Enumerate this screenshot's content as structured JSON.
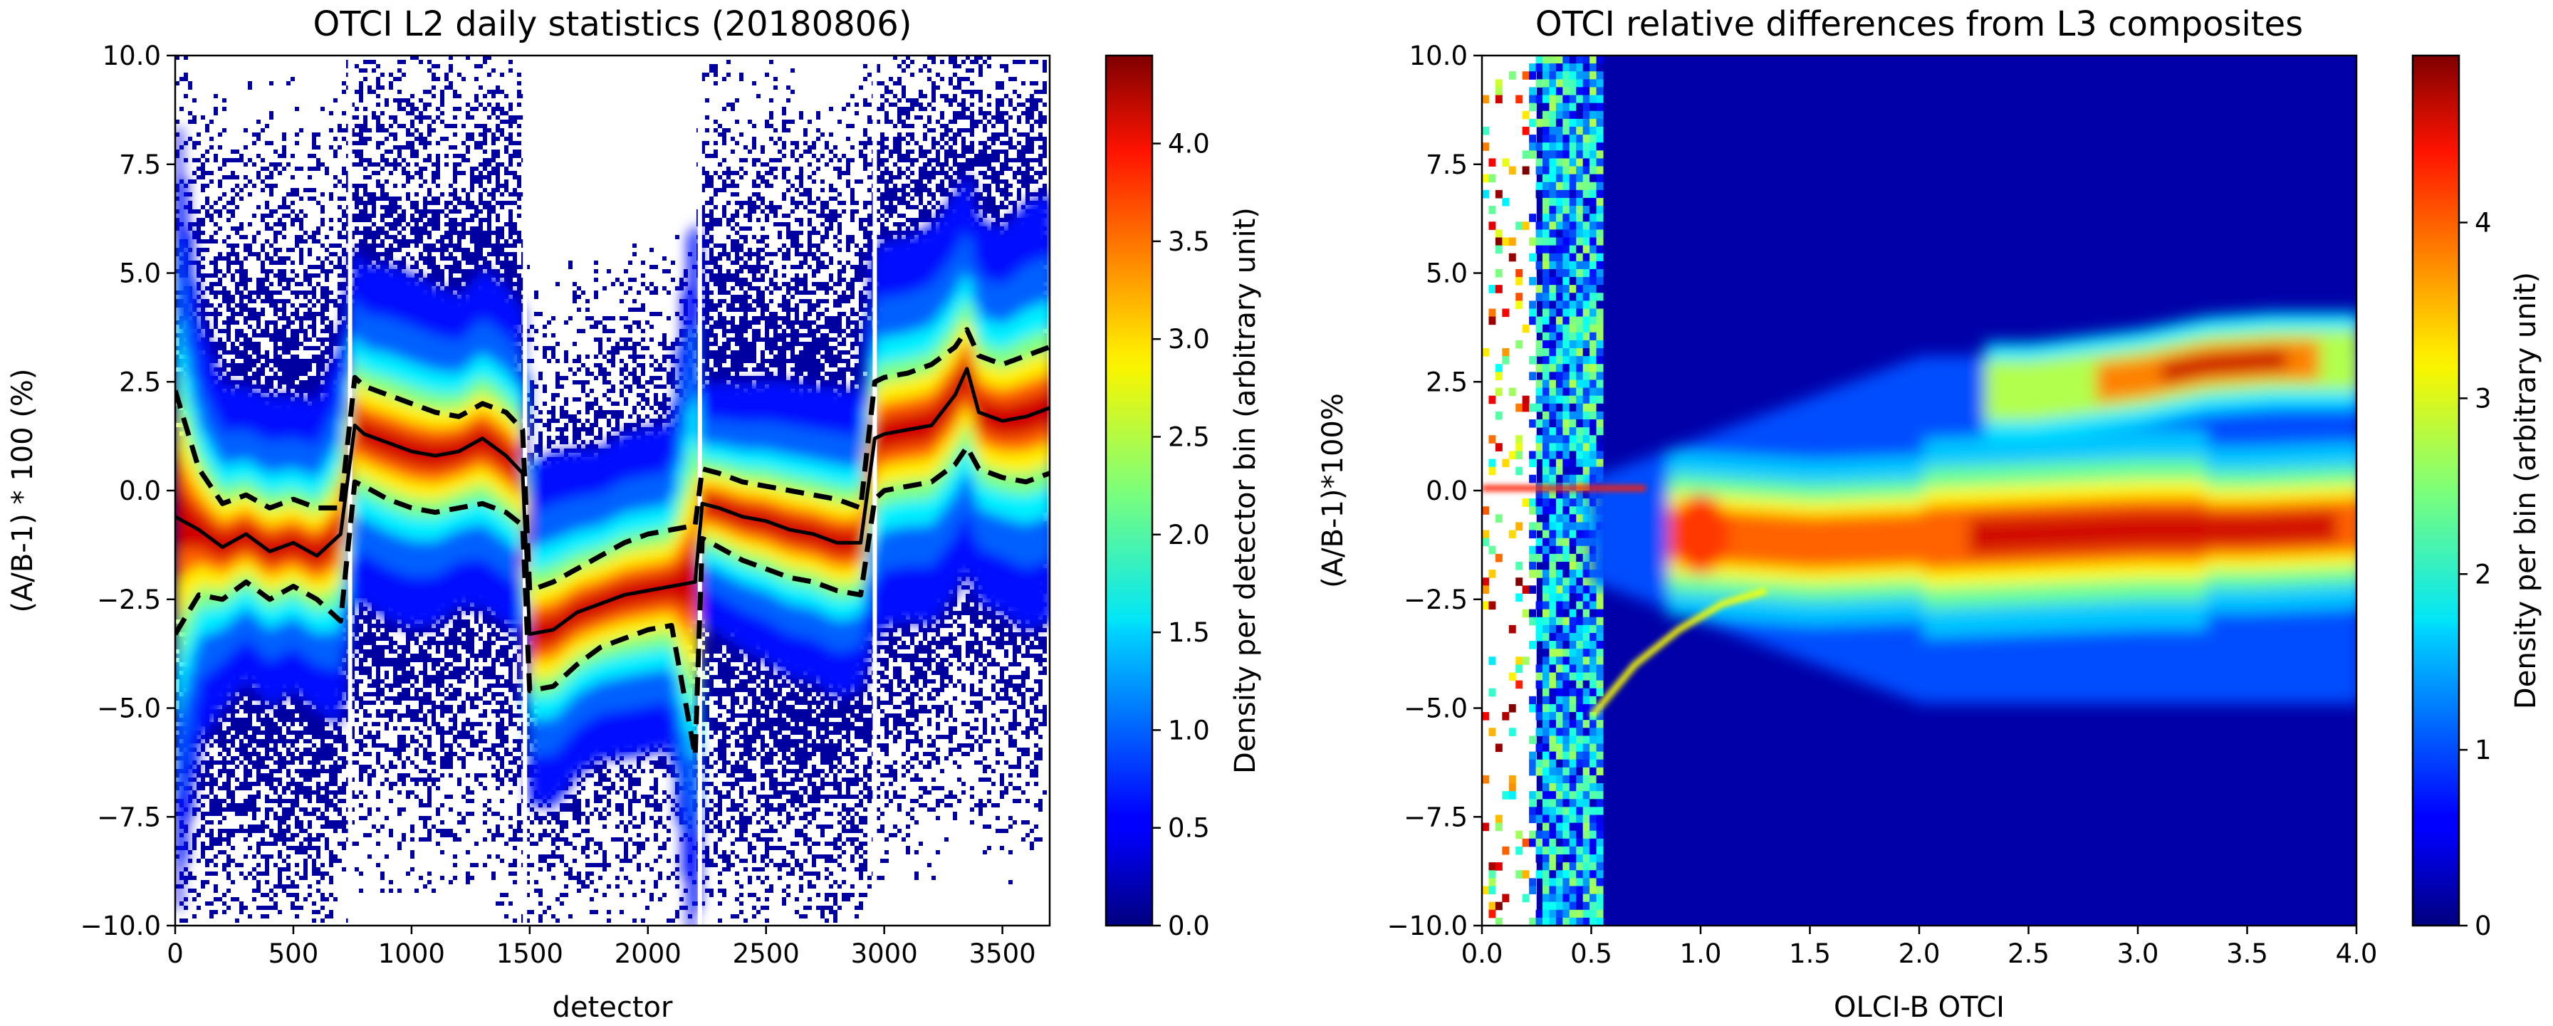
{
  "chart_data": [
    {
      "type": "heatmap",
      "title": "OTCI L2 daily statistics (20180806)",
      "xlabel": "detector",
      "ylabel": "(A/B-1) * 100 (%)",
      "xlim": [
        0,
        3700
      ],
      "ylim": [
        -10.0,
        10.0
      ],
      "x_ticks": [
        "0",
        "500",
        "1000",
        "1500",
        "2000",
        "2500",
        "3000",
        "3500"
      ],
      "y_ticks": [
        "−10.0",
        "−7.5",
        "−5.0",
        "−2.5",
        "0.0",
        "2.5",
        "5.0",
        "7.5",
        "10.0"
      ],
      "colorbar": {
        "label": "Density per detector bin (arbitrary unit)",
        "range": [
          0.0,
          4.45
        ],
        "ticks": [
          "0.0",
          "0.5",
          "1.0",
          "1.5",
          "2.0",
          "2.5",
          "3.0",
          "3.5",
          "4.0"
        ]
      },
      "camera_gaps": [
        740,
        1480,
        2220,
        2960
      ],
      "series": [
        {
          "name": "median",
          "x": [
            0,
            100,
            200,
            300,
            400,
            500,
            600,
            700,
            760,
            800,
            900,
            1000,
            1100,
            1200,
            1300,
            1400,
            1470,
            1500,
            1600,
            1700,
            1800,
            1900,
            2000,
            2100,
            2200,
            2230,
            2300,
            2400,
            2500,
            2600,
            2700,
            2800,
            2900,
            2960,
            3000,
            3100,
            3200,
            3300,
            3350,
            3400,
            3500,
            3600,
            3700
          ],
          "values": [
            -0.6,
            -0.9,
            -1.3,
            -1.0,
            -1.4,
            -1.2,
            -1.5,
            -1.0,
            1.5,
            1.3,
            1.1,
            0.9,
            0.8,
            0.9,
            1.2,
            0.8,
            0.4,
            -3.3,
            -3.2,
            -2.8,
            -2.6,
            -2.4,
            -2.3,
            -2.2,
            -2.1,
            -0.3,
            -0.4,
            -0.6,
            -0.7,
            -0.9,
            -1.0,
            -1.2,
            -1.2,
            1.2,
            1.3,
            1.4,
            1.5,
            2.2,
            2.8,
            1.8,
            1.6,
            1.7,
            1.9
          ]
        },
        {
          "name": "upper envelope",
          "x": [
            0,
            100,
            200,
            300,
            400,
            500,
            600,
            700,
            760,
            800,
            900,
            1000,
            1100,
            1200,
            1300,
            1400,
            1470,
            1500,
            1600,
            1700,
            1800,
            1900,
            2000,
            2100,
            2200,
            2230,
            2300,
            2400,
            2500,
            2600,
            2700,
            2800,
            2900,
            2960,
            3000,
            3100,
            3200,
            3300,
            3350,
            3400,
            3500,
            3600,
            3700
          ],
          "values": [
            2.3,
            0.5,
            -0.3,
            -0.1,
            -0.4,
            -0.2,
            -0.4,
            -0.4,
            2.6,
            2.4,
            2.2,
            2.0,
            1.8,
            1.7,
            2.0,
            1.8,
            1.4,
            -2.3,
            -2.1,
            -1.8,
            -1.5,
            -1.2,
            -1.0,
            -0.9,
            -0.8,
            0.5,
            0.4,
            0.2,
            0.1,
            0.0,
            -0.1,
            -0.2,
            -0.4,
            2.5,
            2.6,
            2.7,
            2.9,
            3.3,
            3.7,
            3.1,
            2.9,
            3.1,
            3.3
          ]
        },
        {
          "name": "lower envelope",
          "x": [
            0,
            100,
            200,
            300,
            400,
            500,
            600,
            700,
            760,
            800,
            900,
            1000,
            1100,
            1200,
            1300,
            1400,
            1470,
            1500,
            1600,
            1700,
            1800,
            1900,
            2000,
            2100,
            2200,
            2230,
            2300,
            2400,
            2500,
            2600,
            2700,
            2800,
            2900,
            2960,
            3000,
            3100,
            3200,
            3300,
            3350,
            3400,
            3500,
            3600,
            3700
          ],
          "values": [
            -3.3,
            -2.4,
            -2.5,
            -2.1,
            -2.5,
            -2.2,
            -2.5,
            -3.0,
            0.2,
            0.1,
            -0.2,
            -0.4,
            -0.5,
            -0.4,
            -0.3,
            -0.5,
            -0.8,
            -4.6,
            -4.5,
            -4.0,
            -3.6,
            -3.4,
            -3.2,
            -3.1,
            -6.1,
            -1.1,
            -1.3,
            -1.6,
            -1.8,
            -2.0,
            -2.1,
            -2.3,
            -2.4,
            -0.2,
            0.0,
            0.1,
            0.2,
            0.6,
            1.0,
            0.5,
            0.3,
            0.2,
            0.4
          ]
        }
      ]
    },
    {
      "type": "heatmap",
      "title": "OTCI relative differences from L3 composites",
      "xlabel": "OLCI-B OTCI",
      "ylabel": "(A/B-1)*100%",
      "xlim": [
        0.0,
        4.0
      ],
      "ylim": [
        -10.0,
        10.0
      ],
      "x_ticks": [
        "0.0",
        "0.5",
        "1.0",
        "1.5",
        "2.0",
        "2.5",
        "3.0",
        "3.5",
        "4.0"
      ],
      "y_ticks": [
        "−10.0",
        "−7.5",
        "−5.0",
        "−2.5",
        "0.0",
        "2.5",
        "5.0",
        "7.5",
        "10.0"
      ],
      "colorbar": {
        "label": "Density per bin (arbitrary unit)",
        "range": [
          0,
          4.95
        ],
        "ticks": [
          "0",
          "1",
          "2",
          "3",
          "4"
        ]
      },
      "density_features": [
        {
          "name": "main ridge",
          "x": [
            0.9,
            1.5,
            2.0,
            2.5,
            3.0,
            3.5,
            4.0
          ],
          "y": [
            -1.0,
            -1.2,
            -1.1,
            -1.0,
            -0.9,
            -0.9,
            -0.8
          ],
          "peak": 4.9
        },
        {
          "name": "upper branch",
          "x": [
            2.5,
            3.0,
            3.3,
            3.6,
            4.0
          ],
          "y": [
            2.3,
            2.6,
            2.9,
            3.0,
            3.0
          ],
          "peak": 4.6
        },
        {
          "name": "curved feature",
          "x": [
            0.5,
            0.7,
            0.9,
            1.1,
            1.3
          ],
          "y": [
            -5.2,
            -4.0,
            -3.2,
            -2.6,
            -2.3
          ],
          "peak": 2.8
        }
      ]
    }
  ]
}
